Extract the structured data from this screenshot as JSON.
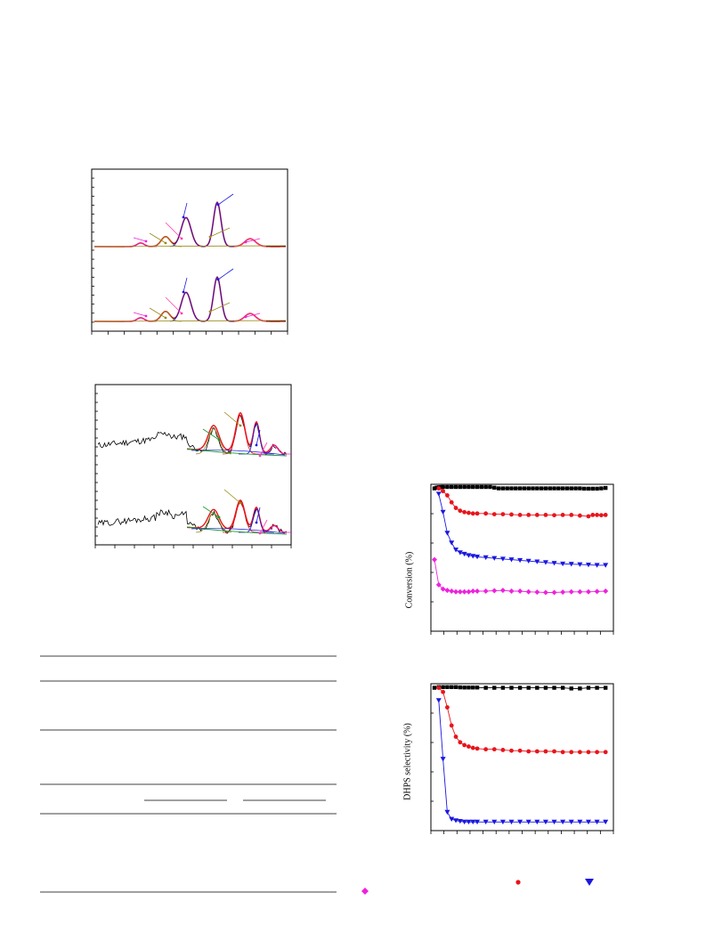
{
  "colors": {
    "black": "#000000",
    "red": "#e8141b",
    "blue": "#1a17e0",
    "magenta": "#ee22dd",
    "olive": "#9a8a18",
    "green": "#1a9a2a",
    "pink": "#ff3fa8"
  },
  "panel_c": {
    "ylabel": "Conversion (%)"
  },
  "panel_d": {
    "ylabel": "DHPS selectivity (%)"
  },
  "chart_data": [
    {
      "type": "line",
      "panel": "upper-left spectra",
      "title": "",
      "xlabel": "",
      "ylabel": "",
      "series": [
        {
          "name": "",
          "color": "#e8141b",
          "x": [
            0,
            20,
            40,
            50,
            60,
            70,
            80,
            90,
            100,
            110,
            120,
            130,
            140,
            150,
            160,
            170,
            180,
            190,
            200,
            215
          ],
          "y": [
            0,
            0,
            0.3,
            0.8,
            1.5,
            2.5,
            8,
            18,
            6,
            2,
            4,
            35,
            8,
            1,
            1,
            4,
            7,
            3,
            1,
            0
          ]
        }
      ]
    },
    {
      "type": "line",
      "panel": "lower-left spectra",
      "title": "",
      "xlabel": "",
      "ylabel": "",
      "series": [
        {
          "name": "",
          "color": "#000000"
        }
      ]
    },
    {
      "type": "line",
      "panel": "Conversion vs time",
      "ylabel": "Conversion (%)",
      "series": [
        {
          "name": "",
          "color": "#000000",
          "marker": "square",
          "x": [
            0,
            0.5,
            1,
            1.5,
            2,
            3,
            4,
            5,
            6,
            7,
            8,
            9,
            10,
            11,
            12,
            13,
            14,
            15,
            16,
            17,
            18,
            19,
            20,
            21,
            22,
            23,
            24,
            25,
            26,
            27,
            28,
            29,
            30,
            31,
            32,
            33,
            34,
            35,
            36,
            37,
            38,
            39,
            40
          ],
          "y": [
            99,
            99.5,
            99.8,
            99.9,
            100,
            100,
            100,
            100,
            100,
            100,
            100,
            100,
            100,
            100,
            100,
            100,
            99.5,
            99,
            99,
            99,
            99,
            99,
            99,
            99,
            99,
            99,
            99,
            99,
            99,
            99,
            99,
            99,
            99,
            99,
            99,
            99,
            99,
            98.8,
            98.8,
            98.8,
            98.8,
            99,
            99.3
          ]
        },
        {
          "name": "",
          "color": "#e8141b",
          "marker": "circle",
          "x": [
            1,
            2,
            3,
            4,
            5,
            6,
            7,
            8,
            9,
            10,
            12,
            14,
            16,
            18,
            20,
            22,
            24,
            26,
            28,
            30,
            32,
            34,
            36,
            37,
            38,
            39,
            40
          ],
          "y": [
            99,
            97,
            94,
            89,
            85,
            83,
            82,
            81.5,
            81,
            81,
            81,
            80.5,
            80.5,
            80.3,
            80,
            80,
            80,
            80,
            79.8,
            80,
            80,
            79.5,
            79,
            80,
            80,
            79.8,
            80
          ]
        },
        {
          "name": "",
          "color": "#1a17e0",
          "marker": "triangle-down",
          "x": [
            1,
            2,
            3,
            4,
            5,
            6,
            7,
            8,
            9,
            10,
            12,
            14,
            16,
            18,
            20,
            22,
            24,
            26,
            28,
            30,
            32,
            34,
            36,
            38,
            40
          ],
          "y": [
            95,
            82,
            67,
            60,
            55,
            53,
            52,
            51,
            50.5,
            50,
            49.5,
            49,
            48.5,
            48,
            47.5,
            47,
            46.5,
            46,
            45.5,
            45,
            44.8,
            44.5,
            44.3,
            44,
            44
          ]
        },
        {
          "name": "",
          "color": "#ee22dd",
          "marker": "diamond",
          "x": [
            0,
            1,
            2,
            3,
            4,
            5,
            6,
            7,
            8,
            9,
            10,
            12,
            14,
            16,
            18,
            20,
            22,
            24,
            26,
            28,
            30,
            32,
            34,
            36,
            38,
            40
          ],
          "y": [
            48,
            30,
            27,
            26,
            25.5,
            25,
            25,
            25,
            25,
            25.5,
            25.5,
            25.5,
            25.8,
            26,
            25.5,
            25.5,
            25,
            24.8,
            24.5,
            24.5,
            24.8,
            25,
            25,
            25,
            25.2,
            25.5
          ]
        }
      ]
    },
    {
      "type": "line",
      "panel": "DHPS selectivity vs time",
      "ylabel": "DHPS selectivity (%)",
      "series": [
        {
          "name": "",
          "color": "#000000",
          "marker": "square",
          "x": [
            0,
            1,
            2,
            3,
            4,
            5,
            6,
            7,
            8,
            9,
            10,
            12,
            14,
            16,
            18,
            20,
            22,
            24,
            26,
            28,
            30,
            32,
            34,
            36,
            38,
            40
          ],
          "y": [
            99,
            99.5,
            99.5,
            99.5,
            99.5,
            99.5,
            99.3,
            99.2,
            99.2,
            99.2,
            99.2,
            99,
            99,
            99,
            99,
            99,
            99,
            99,
            99,
            99,
            99,
            98.5,
            98.5,
            99,
            99,
            99
          ]
        },
        {
          "name": "",
          "color": "#e8141b",
          "marker": "circle",
          "x": [
            1,
            2,
            3,
            4,
            5,
            6,
            7,
            8,
            9,
            10,
            12,
            14,
            16,
            18,
            20,
            22,
            24,
            26,
            28,
            30,
            32,
            34,
            36,
            38,
            40
          ],
          "y": [
            99,
            96,
            85,
            72,
            64,
            60,
            58,
            57,
            56,
            55.5,
            55,
            55,
            54.5,
            54,
            54,
            53.5,
            53.5,
            53.5,
            53.5,
            53,
            53,
            53,
            53,
            53,
            53
          ]
        },
        {
          "name": "",
          "color": "#1a17e0",
          "marker": "triangle-down",
          "x": [
            1,
            2,
            3,
            4,
            5,
            6,
            7,
            8,
            9,
            10,
            12,
            14,
            16,
            18,
            20,
            22,
            24,
            26,
            28,
            30,
            32,
            34,
            36,
            38,
            40
          ],
          "y": [
            90,
            48,
            10,
            5,
            4,
            3.5,
            3,
            3,
            3,
            3,
            3,
            3,
            3,
            3,
            3,
            3,
            3,
            3,
            3,
            3,
            3,
            3,
            3,
            3,
            3
          ]
        }
      ]
    }
  ]
}
